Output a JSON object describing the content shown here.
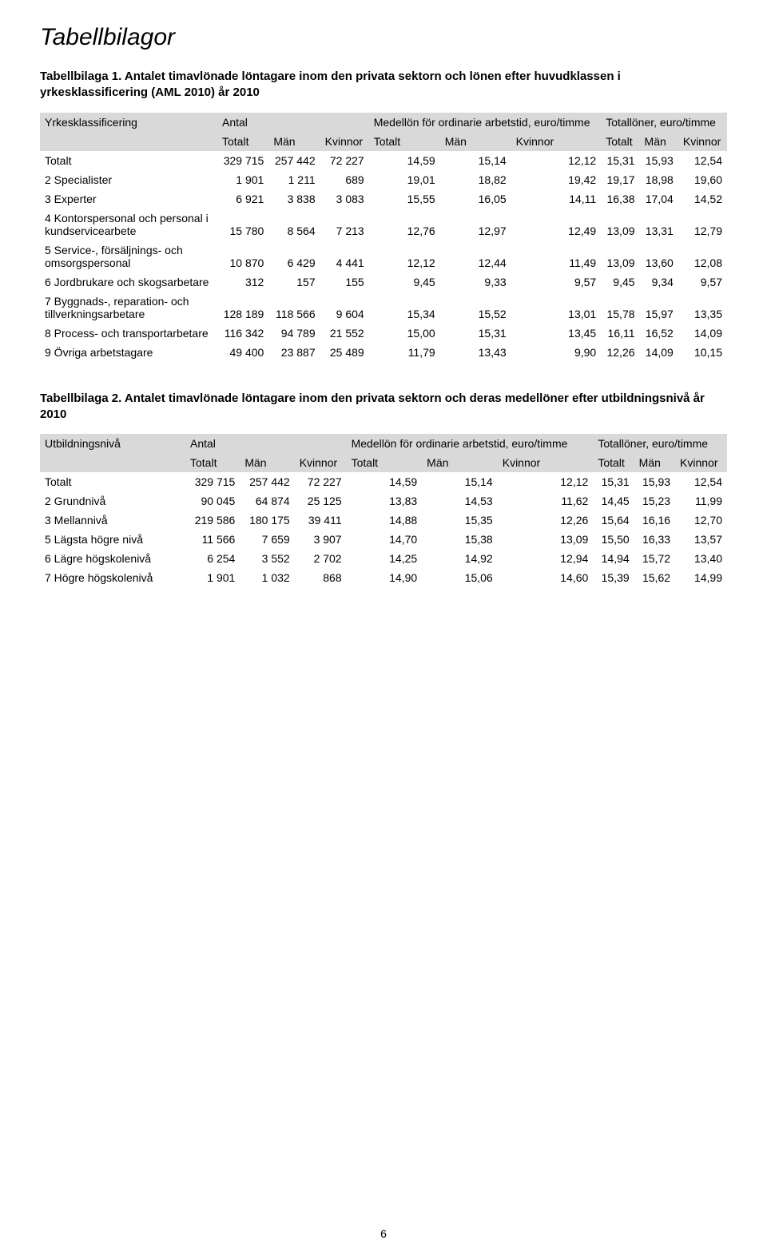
{
  "page_title": "Tabellbilagor",
  "page_number": "6",
  "table1": {
    "caption": "Tabellbilaga 1. Antalet timavlönade löntagare inom den privata sektorn och lönen efter huvudklassen i yrkesklassificering (AML 2010) år 2010",
    "group_headers": [
      "Yrkesklassificering",
      "Antal",
      "Medellön för ordinarie arbetstid, euro/timme",
      "Totallöner, euro/timme"
    ],
    "sub_headers": [
      "",
      "Totalt",
      "Män",
      "Kvinnor",
      "Totalt",
      "Män",
      "Kvinnor",
      "Totalt",
      "Män",
      "Kvinnor"
    ],
    "rows": [
      {
        "label": "Totalt",
        "c": [
          "329 715",
          "257 442",
          "72 227",
          "14,59",
          "15,14",
          "12,12",
          "15,31",
          "15,93",
          "12,54"
        ]
      },
      {
        "label": "2 Specialister",
        "c": [
          "1 901",
          "1 211",
          "689",
          "19,01",
          "18,82",
          "19,42",
          "19,17",
          "18,98",
          "19,60"
        ]
      },
      {
        "label": "3 Experter",
        "c": [
          "6 921",
          "3 838",
          "3 083",
          "15,55",
          "16,05",
          "14,11",
          "16,38",
          "17,04",
          "14,52"
        ]
      },
      {
        "label": "4 Kontorspersonal och personal i kundservicearbete",
        "c": [
          "15 780",
          "8 564",
          "7 213",
          "12,76",
          "12,97",
          "12,49",
          "13,09",
          "13,31",
          "12,79"
        ]
      },
      {
        "label": "5 Service-, försäljnings- och omsorgspersonal",
        "c": [
          "10 870",
          "6 429",
          "4 441",
          "12,12",
          "12,44",
          "11,49",
          "13,09",
          "13,60",
          "12,08"
        ]
      },
      {
        "label": "6 Jordbrukare och skogsarbetare",
        "c": [
          "312",
          "157",
          "155",
          "9,45",
          "9,33",
          "9,57",
          "9,45",
          "9,34",
          "9,57"
        ]
      },
      {
        "label": "7 Byggnads-, reparation- och tillverkningsarbetare",
        "c": [
          "128 189",
          "118 566",
          "9 604",
          "15,34",
          "15,52",
          "13,01",
          "15,78",
          "15,97",
          "13,35"
        ]
      },
      {
        "label": "8 Process- och transportarbetare",
        "c": [
          "116 342",
          "94 789",
          "21 552",
          "15,00",
          "15,31",
          "13,45",
          "16,11",
          "16,52",
          "14,09"
        ]
      },
      {
        "label": "9 Övriga arbetstagare",
        "c": [
          "49 400",
          "23 887",
          "25 489",
          "11,79",
          "13,43",
          "9,90",
          "12,26",
          "14,09",
          "10,15"
        ]
      }
    ]
  },
  "table2": {
    "caption": "Tabellbilaga 2. Antalet timavlönade löntagare inom den privata sektorn och deras medellöner efter utbildningsnivå år 2010",
    "group_headers": [
      "Utbildningsnivå",
      "Antal",
      "Medellön för ordinarie arbetstid, euro/timme",
      "Totallöner, euro/timme"
    ],
    "sub_headers": [
      "",
      "Totalt",
      "Män",
      "Kvinnor",
      "Totalt",
      "Män",
      "Kvinnor",
      "Totalt",
      "Män",
      "Kvinnor"
    ],
    "rows": [
      {
        "label": "Totalt",
        "c": [
          "329 715",
          "257 442",
          "72 227",
          "14,59",
          "15,14",
          "12,12",
          "15,31",
          "15,93",
          "12,54"
        ]
      },
      {
        "label": "2 Grundnivå",
        "c": [
          "90 045",
          "64 874",
          "25 125",
          "13,83",
          "14,53",
          "11,62",
          "14,45",
          "15,23",
          "11,99"
        ]
      },
      {
        "label": "3 Mellannivå",
        "c": [
          "219 586",
          "180 175",
          "39 411",
          "14,88",
          "15,35",
          "12,26",
          "15,64",
          "16,16",
          "12,70"
        ]
      },
      {
        "label": "5 Lägsta högre nivå",
        "c": [
          "11 566",
          "7 659",
          "3 907",
          "14,70",
          "15,38",
          "13,09",
          "15,50",
          "16,33",
          "13,57"
        ]
      },
      {
        "label": "6 Lägre högskolenivå",
        "c": [
          "6 254",
          "3 552",
          "2 702",
          "14,25",
          "14,92",
          "12,94",
          "14,94",
          "15,72",
          "13,40"
        ]
      },
      {
        "label": "7 Högre högskolenivå",
        "c": [
          "1 901",
          "1 032",
          "868",
          "14,90",
          "15,06",
          "14,60",
          "15,39",
          "15,62",
          "14,99"
        ]
      }
    ]
  }
}
